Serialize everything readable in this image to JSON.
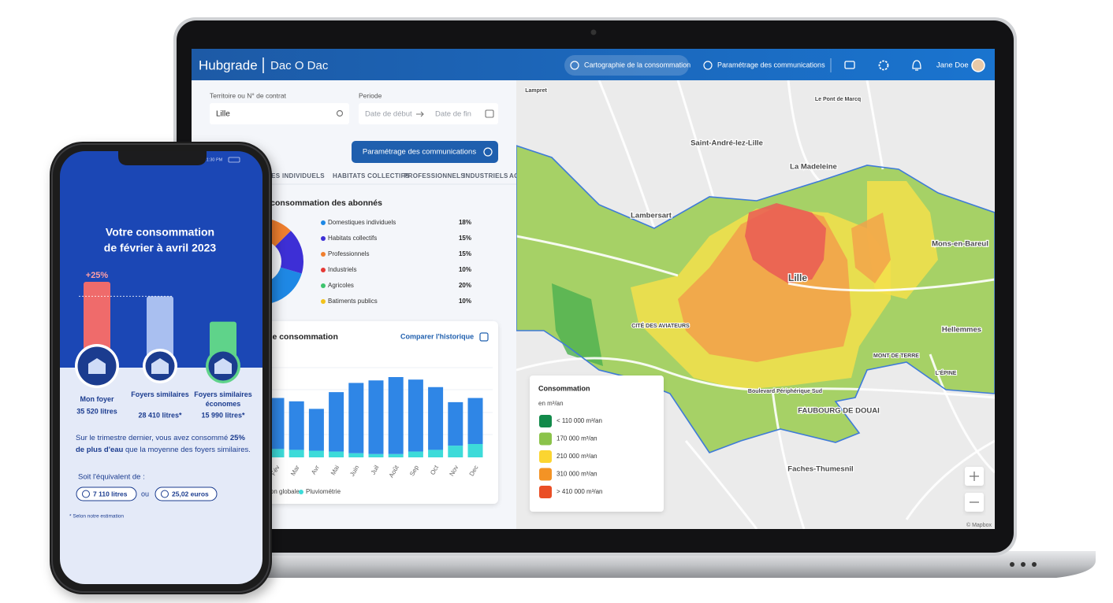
{
  "laptop": {
    "header": {
      "brand": "Hubgrade",
      "sub_brand": "Dac O Dac",
      "nav": [
        "Cartographie de la consommation",
        "Paramétrage des communications"
      ],
      "user": "Jane Doe"
    },
    "filters": {
      "territory_label": "Territoire ou N° de contrat",
      "territory_value": "Lille",
      "period_label": "Periode",
      "start_placeholder": "Date de début",
      "end_placeholder": "Date de fin"
    },
    "button": "Paramétrage des communications",
    "tabs": [
      "DOMESTIQUES INDIVIDUELS",
      "HABITATS COLLECTIFS",
      "PROFESSIONNELS",
      "INDUSTRIELS",
      "AGRICOLES"
    ],
    "map": {
      "places": [
        "Lampret",
        "Le Pont de Marcq",
        "Saint-André-lez-Lille",
        "La Madeleine",
        "Lambersart",
        "Lille",
        "Mons-en-Bareul",
        "CITÉ DES AVIATEURS",
        "Hellemmes",
        "MONT DE TERRE",
        "L'ÉPINE",
        "Boulevard Périphérique Sud",
        "FAUBOURG DE DOUAI",
        "Faches-Thumesnil"
      ],
      "legend": {
        "title": "Consommation",
        "unit": "en m³/an",
        "items": [
          "< 110 000 m³/an",
          "170 000 m³/an",
          "210 000 m³/an",
          "310 000 m³/an",
          "> 410 000 m³/an"
        ],
        "colors": [
          "#128a4a",
          "#8bc34a",
          "#fbd531",
          "#f39325",
          "#ea4e25"
        ]
      },
      "attribution": "© Mapbox"
    }
  },
  "chart_data": [
    {
      "type": "pie",
      "title": "Répartition de la consommation des abonnés",
      "categories": [
        "Domestiques individuels",
        "Habitats collectifs",
        "Professionnels",
        "Industriels",
        "Agricoles",
        "Batiments publics"
      ],
      "values": [
        18,
        15,
        15,
        10,
        20,
        10
      ],
      "value_labels": [
        "18%",
        "15%",
        "15%",
        "10%",
        "20%",
        "10%"
      ],
      "colors": [
        "#1e88e5",
        "#3d2fd6",
        "#f07f2e",
        "#e53935",
        "#3ec46d",
        "#f2c21b"
      ]
    },
    {
      "type": "bar",
      "title": "Prévisions de consommation",
      "link": "Comparer l'historique",
      "stacked": true,
      "categories": [
        "Fév",
        "Mar",
        "Avr",
        "Mai",
        "Juin",
        "Juil",
        "Août",
        "Sep",
        "Oct",
        "Nov",
        "Dec"
      ],
      "series": [
        {
          "name": "Consommation globale",
          "color": "#2f86e6",
          "values": [
            61,
            58,
            50,
            71,
            84,
            88,
            92,
            86,
            75,
            52,
            55
          ]
        },
        {
          "name": "Pluviométrie",
          "color": "#3ddbd9",
          "values": [
            10,
            9,
            8,
            7,
            5,
            4,
            4,
            7,
            9,
            14,
            16
          ]
        }
      ]
    },
    {
      "type": "bar",
      "title": [
        "Votre consommation",
        "de février à avril 2023"
      ],
      "status_time": "1:30 PM",
      "annotation": "+25%",
      "categories": [
        "Mon foyer",
        "Foyers similaires",
        "Foyers similaires économes"
      ],
      "values": [
        35520,
        28410,
        15990
      ],
      "value_labels": [
        "35 520 litres",
        "28 410 litres*",
        "15 990 litres*"
      ],
      "colors": [
        "#ef6b6b",
        "#a9bff0",
        "#5fd38a"
      ],
      "message": {
        "line1": "Sur le trimestre dernier, vous avez consommé",
        "highlight": "25% de plus d'eau",
        "rest": "que la moyenne des foyers similaires."
      },
      "equivalent_label": "Soit l'équivalent de :",
      "equivalents": [
        "7 110 litres",
        "25,02 euros"
      ],
      "or_word": "ou",
      "footnote": "* Selon notre estimation"
    }
  ]
}
